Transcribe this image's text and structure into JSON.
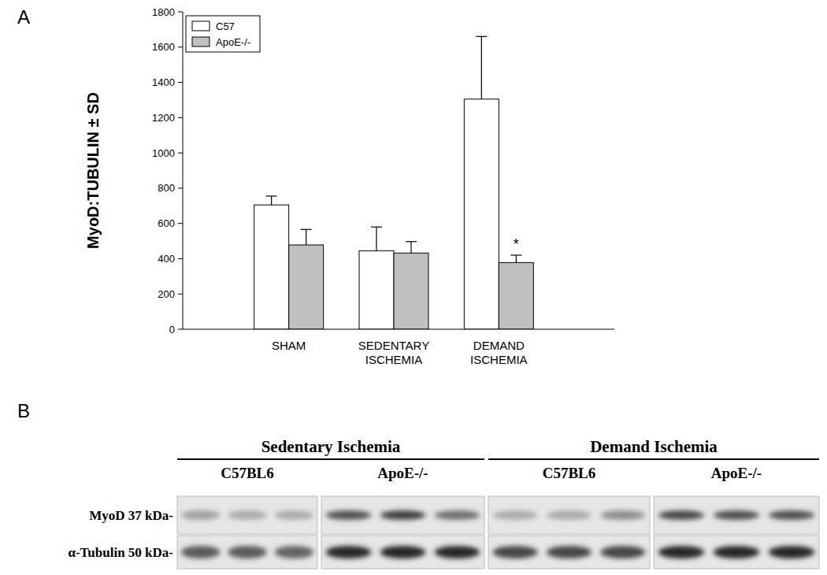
{
  "panels": {
    "a": "A",
    "b": "B"
  },
  "chart_data": {
    "type": "bar",
    "y_label": "MyoD:TUBULIN ± SD",
    "categories": [
      "SHAM",
      "SEDENTARY ISCHEMIA",
      "DEMAND ISCHEMIA"
    ],
    "series": [
      {
        "name": "C57",
        "color": "#ffffff",
        "values": [
          705,
          445,
          1305
        ],
        "errors": [
          50,
          135,
          355
        ]
      },
      {
        "name": "ApoE-/-",
        "color": "#c0c0c0",
        "values": [
          478,
          432,
          378
        ],
        "errors": [
          88,
          65,
          42
        ]
      }
    ],
    "ylim": [
      0,
      1800
    ],
    "yticks": [
      0,
      200,
      400,
      600,
      800,
      1000,
      1200,
      1400,
      1600,
      1800
    ],
    "legend": "upper left",
    "annotations": [
      {
        "text": "*",
        "category": "DEMAND ISCHEMIA",
        "series": "ApoE-/-"
      }
    ]
  },
  "blot": {
    "groups": [
      {
        "title": "Sedentary Ischemia",
        "strains": [
          "C57BL6",
          "ApoE-/-"
        ]
      },
      {
        "title": "Demand Ischemia",
        "strains": [
          "C57BL6",
          "ApoE-/-"
        ]
      }
    ],
    "rows": [
      "MyoD 37 kDa-",
      "α-Tubulin 50 kDa-"
    ]
  }
}
